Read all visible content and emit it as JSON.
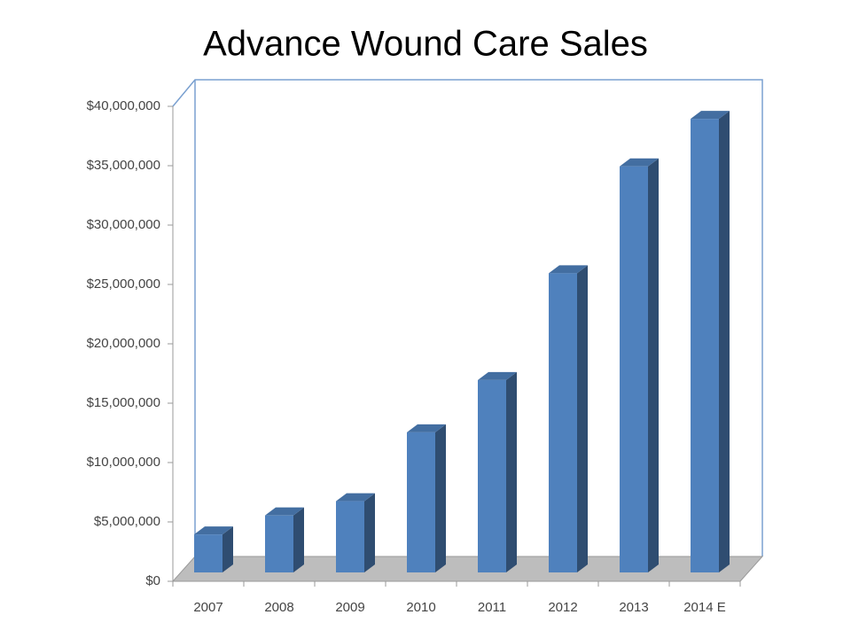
{
  "chart_data": {
    "type": "bar3d",
    "title": "Advance Wound Care Sales",
    "categories": [
      "2007",
      "2008",
      "2009",
      "2010",
      "2011",
      "2012",
      "2013",
      "2014 E"
    ],
    "values": [
      3200000,
      4800000,
      6000000,
      11800000,
      16200000,
      25200000,
      34200000,
      38200000
    ],
    "color": "#4f81bd",
    "ylim": [
      0,
      40000000
    ],
    "yticks": [
      {
        "value": 0,
        "label": "$0"
      },
      {
        "value": 5000000,
        "label": "$5,000,000"
      },
      {
        "value": 10000000,
        "label": "$10,000,000"
      },
      {
        "value": 15000000,
        "label": "$15,000,000"
      },
      {
        "value": 20000000,
        "label": "$20,000,000"
      },
      {
        "value": 25000000,
        "label": "$25,000,000"
      },
      {
        "value": 30000000,
        "label": "$30,000,000"
      },
      {
        "value": 35000000,
        "label": "$35,000,000"
      },
      {
        "value": 40000000,
        "label": "$40,000,000"
      }
    ],
    "grid": false
  }
}
